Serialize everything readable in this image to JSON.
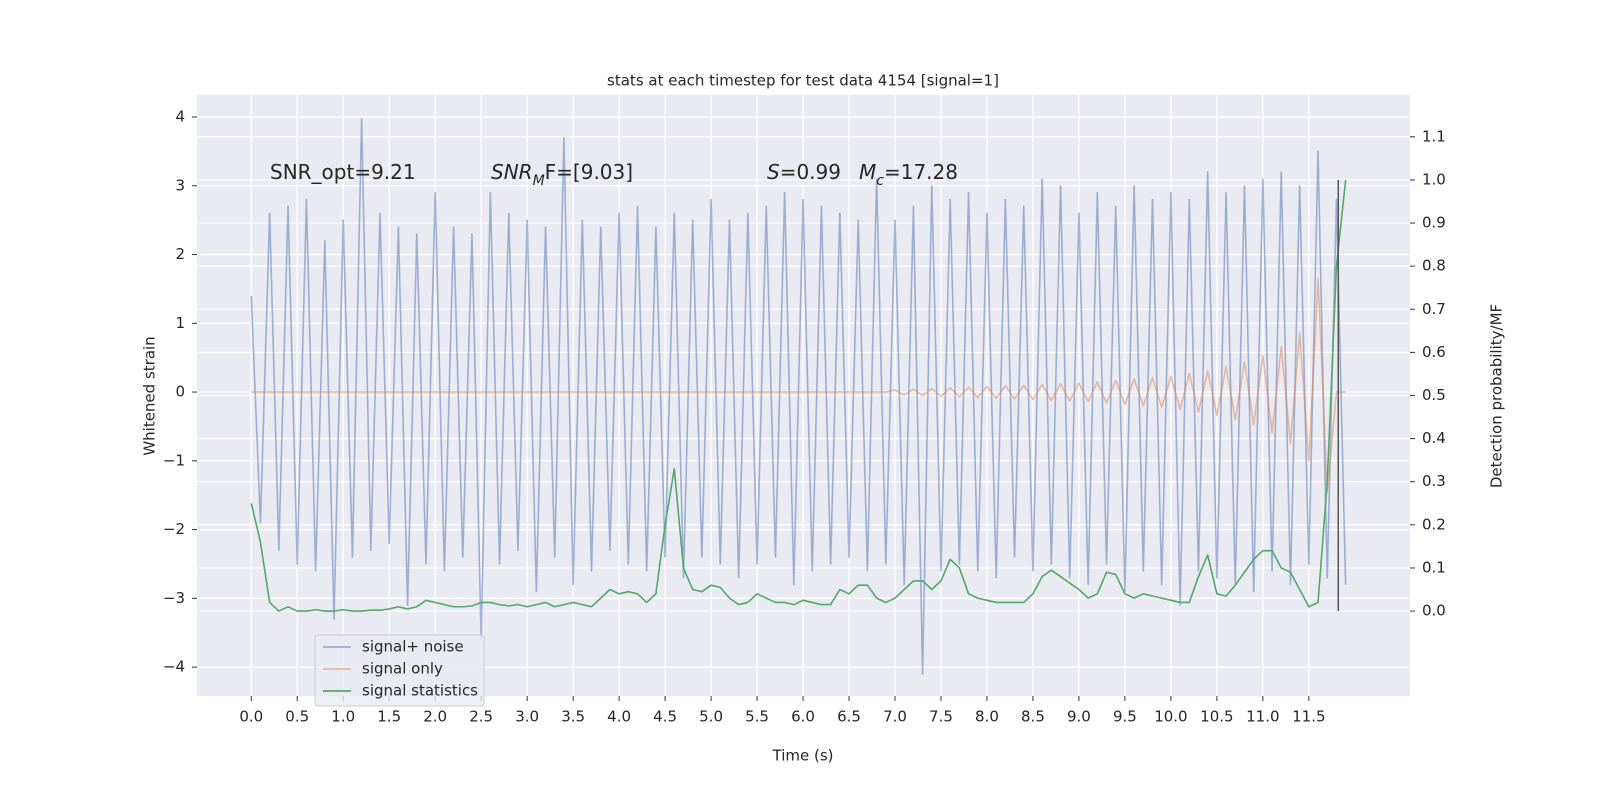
{
  "chart_data": {
    "type": "line",
    "title": "stats at each timestep for test data 4154 [signal=1]",
    "xlabel": "Time (s)",
    "ylabel": "Whitened strain",
    "y2label": "Detection probability/MF",
    "annotations": [
      {
        "parts": [
          {
            "text": "SNR_opt=9.21"
          }
        ]
      },
      {
        "parts": [
          {
            "text": "SNR",
            "style": "italic"
          },
          {
            "text": "M",
            "style": "sub"
          },
          {
            "text": "F=[9.03]"
          }
        ]
      },
      {
        "parts": [
          {
            "text": "S",
            "style": "italic"
          },
          {
            "text": "=0.99"
          }
        ]
      },
      {
        "parts": [
          {
            "text": "M",
            "style": "italic"
          },
          {
            "text": "c",
            "style": "sub"
          },
          {
            "text": "=17.28"
          }
        ]
      }
    ],
    "x": [
      0.0,
      0.1,
      0.2,
      0.3,
      0.4,
      0.5,
      0.6,
      0.7,
      0.8,
      0.9,
      1.0,
      1.1,
      1.2,
      1.3,
      1.4,
      1.5,
      1.6,
      1.7,
      1.8,
      1.9,
      2.0,
      2.1,
      2.2,
      2.3,
      2.4,
      2.5,
      2.6,
      2.7,
      2.8,
      2.9,
      3.0,
      3.1,
      3.2,
      3.3,
      3.4,
      3.5,
      3.6,
      3.7,
      3.8,
      3.9,
      4.0,
      4.1,
      4.2,
      4.3,
      4.4,
      4.5,
      4.6,
      4.7,
      4.8,
      4.9,
      5.0,
      5.1,
      5.2,
      5.3,
      5.4,
      5.5,
      5.6,
      5.7,
      5.8,
      5.9,
      6.0,
      6.1,
      6.2,
      6.3,
      6.4,
      6.5,
      6.6,
      6.7,
      6.8,
      6.9,
      7.0,
      7.1,
      7.2,
      7.3,
      7.4,
      7.5,
      7.6,
      7.7,
      7.8,
      7.9,
      8.0,
      8.1,
      8.2,
      8.3,
      8.4,
      8.5,
      8.6,
      8.7,
      8.8,
      8.9,
      9.0,
      9.1,
      9.2,
      9.3,
      9.4,
      9.5,
      9.6,
      9.7,
      9.8,
      9.9,
      10.0,
      10.1,
      10.2,
      10.3,
      10.4,
      10.5,
      10.6,
      10.7,
      10.8,
      10.9,
      11.0,
      11.1,
      11.2,
      11.3,
      11.4,
      11.5,
      11.6,
      11.7,
      11.8,
      11.9
    ],
    "series": [
      {
        "name": "signal+ noise",
        "color": "#4c72b0",
        "values": [
          1.4,
          -1.9,
          2.6,
          -2.3,
          2.7,
          -2.5,
          2.8,
          -2.6,
          2.2,
          -3.3,
          2.5,
          -2.4,
          3.97,
          -2.3,
          2.6,
          -2.2,
          2.4,
          -3.1,
          2.3,
          -2.5,
          2.9,
          -2.6,
          2.4,
          -2.4,
          2.3,
          -3.6,
          2.9,
          -2.5,
          2.6,
          -2.3,
          2.5,
          -2.9,
          2.4,
          -2.4,
          3.7,
          -2.8,
          2.5,
          -2.6,
          2.4,
          -2.3,
          2.6,
          -2.5,
          2.7,
          -2.6,
          2.4,
          -2.4,
          2.6,
          -2.7,
          2.5,
          -2.4,
          2.8,
          -2.5,
          2.5,
          -2.7,
          2.6,
          -2.5,
          2.7,
          -2.4,
          2.9,
          -2.8,
          2.8,
          -2.6,
          2.7,
          -2.5,
          2.6,
          -2.4,
          2.5,
          -2.6,
          3.1,
          -2.5,
          2.5,
          -2.8,
          2.7,
          -4.1,
          3.0,
          -2.6,
          2.8,
          -2.5,
          2.9,
          -2.6,
          2.6,
          -2.7,
          2.8,
          -2.4,
          2.7,
          -2.6,
          3.1,
          -2.5,
          3.0,
          -2.7,
          2.6,
          -2.8,
          2.9,
          -2.5,
          2.7,
          -2.9,
          3.0,
          -2.6,
          2.8,
          -2.8,
          2.9,
          -3.1,
          2.8,
          -2.6,
          3.2,
          -2.7,
          2.9,
          -2.8,
          3.0,
          -2.9,
          3.1,
          -2.6,
          3.2,
          -2.8,
          3.0,
          -2.5,
          3.5,
          -2.7,
          2.8,
          -2.8
        ]
      },
      {
        "name": "signal only",
        "color": "#dd8452",
        "values": [
          0,
          0,
          0,
          0,
          0,
          0,
          0,
          0,
          0,
          0,
          0,
          0,
          0,
          0,
          0,
          0,
          0,
          0,
          0,
          0,
          0,
          0,
          0,
          0,
          0,
          0,
          0,
          0,
          0,
          0,
          0,
          0,
          0,
          0,
          0,
          0,
          0,
          0,
          0,
          0,
          0,
          0,
          0,
          0,
          0,
          0,
          0,
          0,
          0,
          0,
          0,
          0,
          0,
          0,
          0,
          0,
          0,
          0,
          0,
          0,
          0,
          0,
          0,
          0,
          0,
          0,
          0,
          0,
          0,
          0,
          0.03,
          -0.04,
          0.04,
          -0.05,
          0.05,
          -0.06,
          0.06,
          -0.07,
          0.07,
          -0.08,
          0.08,
          -0.09,
          0.09,
          -0.1,
          0.1,
          -0.11,
          0.11,
          -0.12,
          0.12,
          -0.13,
          0.13,
          -0.14,
          0.15,
          -0.16,
          0.17,
          -0.18,
          0.19,
          -0.2,
          0.21,
          -0.22,
          0.23,
          -0.25,
          0.27,
          -0.29,
          0.31,
          -0.34,
          0.37,
          -0.4,
          0.44,
          -0.48,
          0.53,
          -0.59,
          0.66,
          -0.75,
          0.86,
          -1.0,
          1.65,
          -1.45,
          0,
          0
        ]
      },
      {
        "name": "signal statistics",
        "color": "#55a868",
        "axis": "y2",
        "values": [
          0.25,
          0.16,
          0.02,
          0.0,
          0.01,
          0.0,
          0.0,
          0.003,
          0.0,
          0.0,
          0.003,
          0.0,
          0.0,
          0.002,
          0.002,
          0.005,
          0.01,
          0.005,
          0.01,
          0.025,
          0.02,
          0.015,
          0.01,
          0.01,
          0.012,
          0.02,
          0.02,
          0.015,
          0.012,
          0.015,
          0.01,
          0.015,
          0.02,
          0.01,
          0.015,
          0.02,
          0.015,
          0.01,
          0.03,
          0.05,
          0.04,
          0.045,
          0.04,
          0.02,
          0.04,
          0.2,
          0.33,
          0.1,
          0.05,
          0.045,
          0.06,
          0.055,
          0.03,
          0.015,
          0.02,
          0.04,
          0.03,
          0.02,
          0.02,
          0.015,
          0.025,
          0.02,
          0.015,
          0.015,
          0.05,
          0.04,
          0.06,
          0.06,
          0.03,
          0.02,
          0.03,
          0.05,
          0.07,
          0.07,
          0.05,
          0.07,
          0.12,
          0.1,
          0.04,
          0.03,
          0.025,
          0.02,
          0.02,
          0.02,
          0.02,
          0.04,
          0.08,
          0.095,
          0.08,
          0.065,
          0.05,
          0.03,
          0.04,
          0.09,
          0.085,
          0.04,
          0.03,
          0.04,
          0.035,
          0.03,
          0.025,
          0.02,
          0.02,
          0.08,
          0.13,
          0.04,
          0.035,
          0.06,
          0.09,
          0.12,
          0.14,
          0.14,
          0.1,
          0.09,
          0.05,
          0.01,
          0.02,
          0.3,
          0.8,
          1.0
        ]
      }
    ],
    "vline": {
      "x": 11.82,
      "ymin": 0,
      "ymax": 1.0,
      "axis": "y2",
      "color": "#555555"
    },
    "xlim": [
      -0.59,
      12.6
    ],
    "xticks": [
      {
        "value": 0,
        "label": "0.0"
      },
      0.5,
      {
        "value": 1,
        "label": "1.0"
      },
      1.5,
      {
        "value": 2,
        "label": "2.0"
      },
      2.5,
      {
        "value": 3,
        "label": "3.0"
      },
      3.5,
      {
        "value": 4,
        "label": "4.0"
      },
      4.5,
      {
        "value": 5,
        "label": "5.0"
      },
      5.5,
      {
        "value": 6,
        "label": "6.0"
      },
      6.5,
      {
        "value": 7,
        "label": "7.0"
      },
      7.5,
      {
        "value": 8,
        "label": "8.0"
      },
      8.5,
      {
        "value": 9,
        "label": "9.0"
      },
      9.5,
      {
        "value": 10,
        "label": "10.0"
      },
      10.5,
      {
        "value": 11,
        "label": "11.0"
      },
      11.5
    ],
    "ylim": [
      -4.42,
      4.32
    ],
    "yticks": [
      {
        "value": -4,
        "label": "−4"
      },
      {
        "value": -3,
        "label": "−3"
      },
      {
        "value": -2,
        "label": "−2"
      },
      {
        "value": -1,
        "label": "−1"
      },
      0,
      1,
      2,
      3,
      4
    ],
    "y2lim": [
      -0.197,
      1.197
    ],
    "y2ticks": [
      {
        "value": 0,
        "label": "0.0"
      },
      0.1,
      0.2,
      0.3,
      0.4,
      0.5,
      0.6,
      0.7,
      0.8,
      0.9,
      {
        "value": 1,
        "label": "1.0"
      },
      1.1
    ],
    "grid": true,
    "legend": "lower left"
  }
}
